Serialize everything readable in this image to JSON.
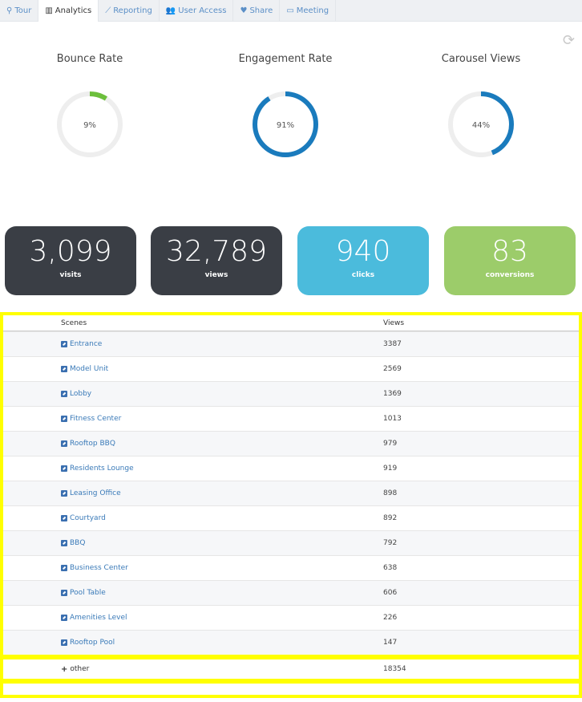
{
  "tabs": [
    {
      "label": "Tour",
      "icon": "map-marker-icon",
      "glyph": "⚲",
      "active": false
    },
    {
      "label": "Analytics",
      "icon": "bar-chart-icon",
      "glyph": "▥",
      "active": true
    },
    {
      "label": "Reporting",
      "icon": "line-chart-icon",
      "glyph": "⟋",
      "active": false
    },
    {
      "label": "User Access",
      "icon": "users-icon",
      "glyph": "👥",
      "active": false
    },
    {
      "label": "Share",
      "icon": "heart-icon",
      "glyph": "♥",
      "active": false
    },
    {
      "label": "Meeting",
      "icon": "monitor-icon",
      "glyph": "▭",
      "active": false
    }
  ],
  "refresh_icon": "refresh-icon",
  "gauges": [
    {
      "title": "Bounce Rate",
      "value": 9,
      "label": "9%",
      "color": "#6cbf3c"
    },
    {
      "title": "Engagement Rate",
      "value": 91,
      "label": "91%",
      "color": "#1a7bbd"
    },
    {
      "title": "Carousel Views",
      "value": 44,
      "label": "44%",
      "color": "#1a7bbd"
    }
  ],
  "stats": [
    {
      "value": "3,099",
      "label": "visits",
      "color": "#3a3e45"
    },
    {
      "value": "32,789",
      "label": "views",
      "color": "#3a3e45"
    },
    {
      "value": "940",
      "label": "clicks",
      "color": "#4bbbdc"
    },
    {
      "value": "83",
      "label": "conversions",
      "color": "#9ccc6a"
    }
  ],
  "table": {
    "headers": [
      "Scenes",
      "Views"
    ],
    "rows": [
      {
        "scene": "Entrance",
        "views": "3387"
      },
      {
        "scene": "Model Unit",
        "views": "2569"
      },
      {
        "scene": "Lobby",
        "views": "1369"
      },
      {
        "scene": "Fitness Center",
        "views": "1013"
      },
      {
        "scene": "Rooftop BBQ",
        "views": "979"
      },
      {
        "scene": "Residents Lounge",
        "views": "919"
      },
      {
        "scene": "Leasing Office",
        "views": "898"
      },
      {
        "scene": "Courtyard",
        "views": "892"
      },
      {
        "scene": "BBQ",
        "views": "792"
      },
      {
        "scene": "Business Center",
        "views": "638"
      },
      {
        "scene": "Pool Table",
        "views": "606"
      },
      {
        "scene": "Amenities Level",
        "views": "226"
      },
      {
        "scene": "Rooftop Pool",
        "views": "147"
      }
    ],
    "other": {
      "label": "other",
      "views": "18354",
      "icon": "plus-icon"
    }
  }
}
